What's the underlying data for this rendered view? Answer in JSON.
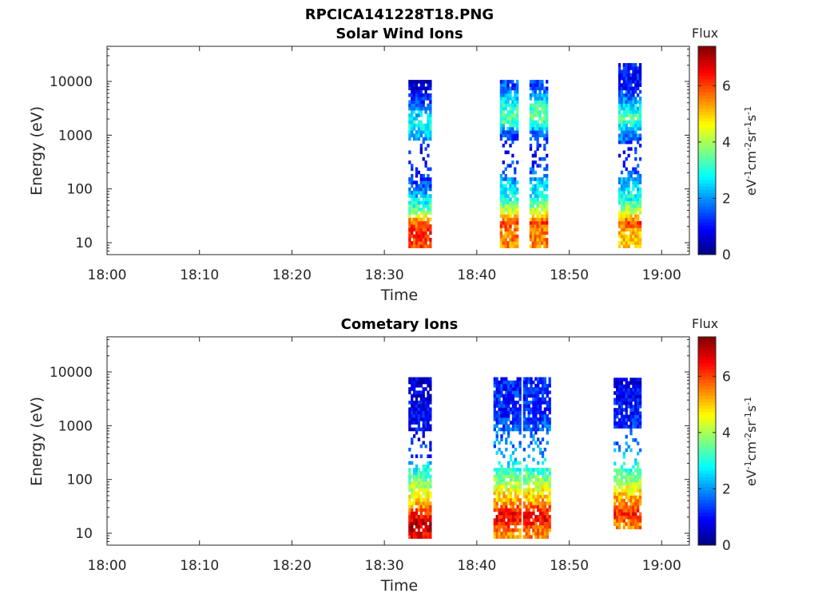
{
  "figure_title": "RPCICA141228T18.PNG",
  "chart_data": [
    {
      "type": "heatmap",
      "title": "Solar Wind Ions",
      "xlabel": "Time",
      "ylabel": "Energy (eV)",
      "x_ticks": [
        "18:00",
        "18:10",
        "18:20",
        "18:30",
        "18:40",
        "18:50",
        "19:00"
      ],
      "x_range_minutes": [
        0,
        63
      ],
      "y_scale": "log",
      "y_ticks": [
        "10",
        "100",
        "1000",
        "10000"
      ],
      "y_range": [
        6,
        45000
      ],
      "colorbar": {
        "title": "Flux",
        "label": "eV-1 cm-2 sr-1 s-1",
        "ticks": [
          "0",
          "2",
          "4",
          "6"
        ],
        "range": [
          0,
          7.4
        ]
      },
      "colors": {
        "min": "#00007f",
        "max": "#7f0000",
        "colormap": "jet"
      },
      "clusters": [
        {
          "t_start": 32.6,
          "t_end": 35.0,
          "e_low": 8,
          "e_high": 10000,
          "profile": [
            [
              8,
              6.0
            ],
            [
              15,
              6.3
            ],
            [
              25,
              5.5
            ],
            [
              35,
              3.6
            ],
            [
              60,
              2.6
            ],
            [
              110,
              1.5
            ],
            [
              200,
              1.0
            ],
            [
              500,
              0.9
            ],
            [
              900,
              2.2
            ],
            [
              1600,
              3.0
            ],
            [
              3000,
              2.0
            ],
            [
              5500,
              0.8
            ],
            [
              10000,
              0.5
            ]
          ]
        },
        {
          "t_start": 42.5,
          "t_end": 44.5,
          "e_low": 8,
          "e_high": 10000,
          "profile": [
            [
              15,
              5.5
            ],
            [
              22,
              6.0
            ],
            [
              35,
              4.3
            ],
            [
              60,
              3.0
            ],
            [
              100,
              2.6
            ],
            [
              200,
              1.5
            ],
            [
              500,
              0.9
            ],
            [
              1000,
              1.5
            ],
            [
              1800,
              3.6
            ],
            [
              3500,
              3.0
            ],
            [
              7000,
              1.5
            ]
          ]
        },
        {
          "t_start": 45.7,
          "t_end": 47.6,
          "e_low": 8,
          "e_high": 10000,
          "profile": [
            [
              15,
              5.5
            ],
            [
              22,
              6.0
            ],
            [
              35,
              4.3
            ],
            [
              60,
              3.0
            ],
            [
              100,
              2.6
            ],
            [
              200,
              1.5
            ],
            [
              500,
              0.9
            ],
            [
              1000,
              1.5
            ],
            [
              1800,
              3.6
            ],
            [
              3500,
              3.0
            ],
            [
              7000,
              1.5
            ]
          ]
        },
        {
          "t_start": 55.3,
          "t_end": 57.6,
          "e_low": 8,
          "e_high": 20000,
          "profile": [
            [
              15,
              5.0
            ],
            [
              22,
              6.0
            ],
            [
              35,
              4.3
            ],
            [
              60,
              3.0
            ],
            [
              100,
              2.6
            ],
            [
              200,
              1.5
            ],
            [
              500,
              1.0
            ],
            [
              1000,
              2.0
            ],
            [
              2000,
              3.5
            ],
            [
              4000,
              2.0
            ],
            [
              8000,
              1.0
            ]
          ]
        }
      ]
    },
    {
      "type": "heatmap",
      "title": "Cometary Ions",
      "xlabel": "Time",
      "ylabel": "Energy (eV)",
      "x_ticks": [
        "18:00",
        "18:10",
        "18:20",
        "18:30",
        "18:40",
        "18:50",
        "19:00"
      ],
      "x_range_minutes": [
        0,
        63
      ],
      "y_scale": "log",
      "y_ticks": [
        "10",
        "100",
        "1000",
        "10000"
      ],
      "y_range": [
        6,
        45000
      ],
      "colorbar": {
        "title": "Flux",
        "label": "eV-1 cm-2 sr-1 s-1",
        "ticks": [
          "0",
          "2",
          "4",
          "6"
        ],
        "range": [
          0,
          7.4
        ]
      },
      "colors": {
        "min": "#00007f",
        "max": "#7f0000",
        "colormap": "jet"
      },
      "clusters": [
        {
          "t_start": 32.6,
          "t_end": 35.0,
          "e_low": 8,
          "e_high": 7500,
          "profile": [
            [
              8,
              6.5
            ],
            [
              14,
              7.0
            ],
            [
              22,
              6.2
            ],
            [
              35,
              5.0
            ],
            [
              60,
              4.2
            ],
            [
              100,
              3.5
            ],
            [
              180,
              2.5
            ],
            [
              260,
              1.2
            ],
            [
              1000,
              0.8
            ],
            [
              1500,
              1.0
            ],
            [
              2200,
              0.8
            ],
            [
              7000,
              0.6
            ]
          ]
        },
        {
          "t_start": 41.8,
          "t_end": 44.6,
          "e_low": 8,
          "e_high": 7000,
          "profile": [
            [
              10,
              5.5
            ],
            [
              15,
              6.3
            ],
            [
              22,
              6.5
            ],
            [
              35,
              5.3
            ],
            [
              60,
              4.6
            ],
            [
              100,
              3.6
            ],
            [
              200,
              2.6
            ],
            [
              400,
              1.8
            ],
            [
              1000,
              1.5
            ],
            [
              2000,
              1.2
            ]
          ]
        },
        {
          "t_start": 45.0,
          "t_end": 48.0,
          "e_low": 8,
          "e_high": 8000,
          "profile": [
            [
              10,
              5.5
            ],
            [
              15,
              6.3
            ],
            [
              22,
              6.5
            ],
            [
              35,
              5.3
            ],
            [
              60,
              4.6
            ],
            [
              100,
              3.6
            ],
            [
              200,
              2.6
            ],
            [
              400,
              1.8
            ],
            [
              1000,
              1.5
            ],
            [
              2000,
              1.2
            ]
          ]
        },
        {
          "t_start": 54.8,
          "t_end": 57.8,
          "e_low": 12,
          "e_high": 7000,
          "profile": [
            [
              15,
              5.5
            ],
            [
              22,
              6.3
            ],
            [
              35,
              5.5
            ],
            [
              60,
              4.6
            ],
            [
              100,
              3.6
            ],
            [
              200,
              2.6
            ],
            [
              400,
              1.8
            ],
            [
              1000,
              1.3
            ],
            [
              2000,
              1.0
            ],
            [
              5000,
              0.8
            ]
          ]
        }
      ]
    }
  ]
}
